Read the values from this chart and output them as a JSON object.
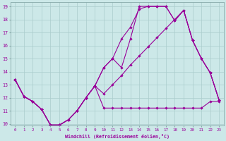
{
  "xlabel": "Windchill (Refroidissement éolien,°C)",
  "bg_color": "#cce8e8",
  "grid_color": "#aacccc",
  "line_color": "#990099",
  "xmin": 0,
  "xmax": 23,
  "ymin": 10,
  "ymax": 19,
  "curve1_x": [
    0,
    1,
    2,
    3,
    4,
    5,
    6,
    7,
    8,
    9,
    10,
    11,
    12,
    13,
    14,
    15,
    16,
    17,
    18,
    19,
    20,
    21,
    22,
    23
  ],
  "curve1_y": [
    13.4,
    12.1,
    11.7,
    11.1,
    9.9,
    9.9,
    10.3,
    11.0,
    12.0,
    12.9,
    14.3,
    15.0,
    16.5,
    17.4,
    18.8,
    19.0,
    19.0,
    19.0,
    17.9,
    18.7,
    16.4,
    15.0,
    13.9,
    11.8
  ],
  "curve2_x": [
    0,
    1,
    2,
    3,
    4,
    5,
    6,
    7,
    8,
    9,
    10,
    11,
    12,
    13,
    14,
    15,
    16,
    17,
    18,
    19,
    20,
    21,
    22,
    23
  ],
  "curve2_y": [
    13.4,
    12.1,
    11.7,
    11.1,
    9.9,
    9.9,
    10.3,
    11.0,
    12.0,
    12.9,
    14.3,
    15.0,
    14.3,
    16.5,
    19.0,
    19.0,
    19.0,
    19.0,
    17.9,
    18.7,
    16.4,
    15.0,
    13.9,
    11.8
  ],
  "curve3_x": [
    0,
    1,
    2,
    3,
    4,
    5,
    6,
    7,
    8,
    9,
    10,
    11,
    12,
    13,
    14,
    15,
    16,
    17,
    18,
    19,
    20,
    21,
    22,
    23
  ],
  "curve3_y": [
    13.4,
    12.1,
    11.7,
    11.1,
    9.9,
    9.9,
    10.3,
    11.0,
    12.0,
    12.9,
    11.2,
    11.2,
    11.2,
    11.2,
    11.2,
    11.2,
    11.2,
    11.2,
    11.2,
    11.2,
    11.2,
    11.2,
    11.7,
    11.7
  ],
  "curve4_x": [
    0,
    1,
    2,
    3,
    4,
    5,
    6,
    7,
    8,
    9,
    10,
    11,
    12,
    13,
    14,
    15,
    16,
    17,
    18,
    19,
    20,
    21,
    22,
    23
  ],
  "curve4_y": [
    13.4,
    12.1,
    11.7,
    11.1,
    9.9,
    9.9,
    10.3,
    11.0,
    12.0,
    12.9,
    12.3,
    13.0,
    13.7,
    14.5,
    15.2,
    15.9,
    16.6,
    17.3,
    18.0,
    18.7,
    16.4,
    15.0,
    13.9,
    11.8
  ]
}
